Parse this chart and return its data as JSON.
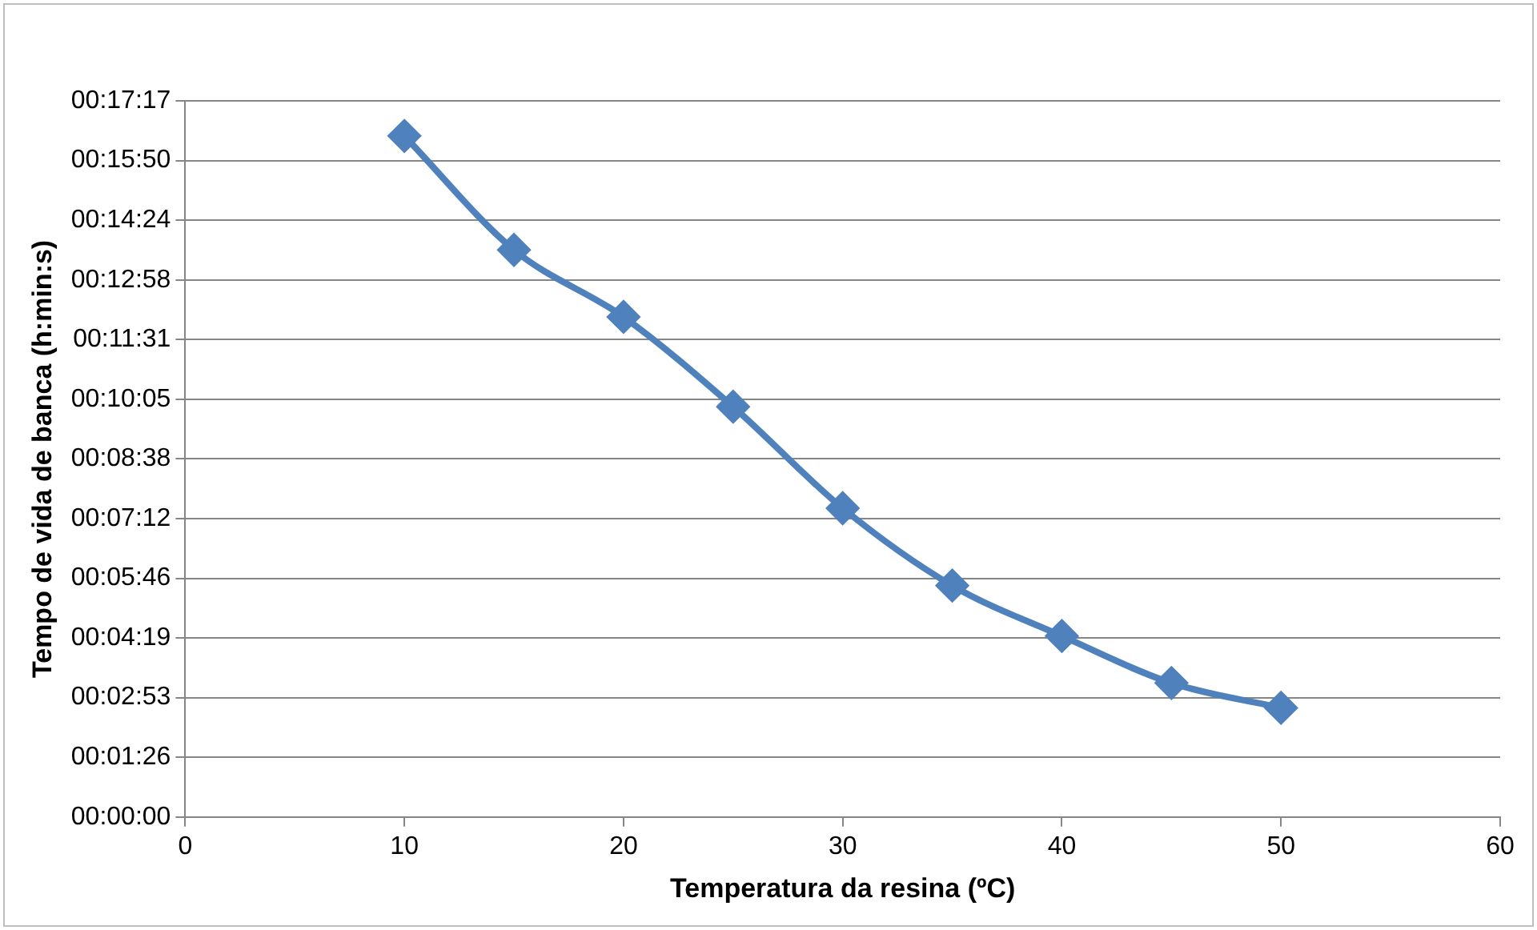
{
  "chart_data": {
    "type": "line",
    "xlabel": "Temperatura da resina (ºC)",
    "ylabel": "Tempo de vida de banca (h:min:s)",
    "x": [
      10,
      15,
      20,
      25,
      30,
      35,
      40,
      45,
      50
    ],
    "series": [
      {
        "color": "#4f81bd",
        "values": [
          986,
          821,
          724,
          594,
          447,
          335,
          262,
          194,
          158
        ]
      }
    ],
    "xlim": [
      0,
      60
    ],
    "xticks": [
      0,
      10,
      20,
      30,
      40,
      50,
      60
    ],
    "ylim": [
      0,
      1036.8
    ],
    "yticks": [
      {
        "value": 0,
        "label": "00:00:00"
      },
      {
        "value": 86.4,
        "label": "00:01:26"
      },
      {
        "value": 172.8,
        "label": "00:02:53"
      },
      {
        "value": 259.2,
        "label": "00:04:19"
      },
      {
        "value": 345.6,
        "label": "00:05:46"
      },
      {
        "value": 432,
        "label": "00:07:12"
      },
      {
        "value": 518.4,
        "label": "00:08:38"
      },
      {
        "value": 604.8,
        "label": "00:10:05"
      },
      {
        "value": 691.2,
        "label": "00:11:31"
      },
      {
        "value": 777.6,
        "label": "00:12:58"
      },
      {
        "value": 864,
        "label": "00:14:24"
      },
      {
        "value": 950.4,
        "label": "00:15:50"
      },
      {
        "value": 1036.8,
        "label": "00:17:17"
      }
    ],
    "grid": "y",
    "marker": "diamond",
    "line_style": "solid"
  }
}
